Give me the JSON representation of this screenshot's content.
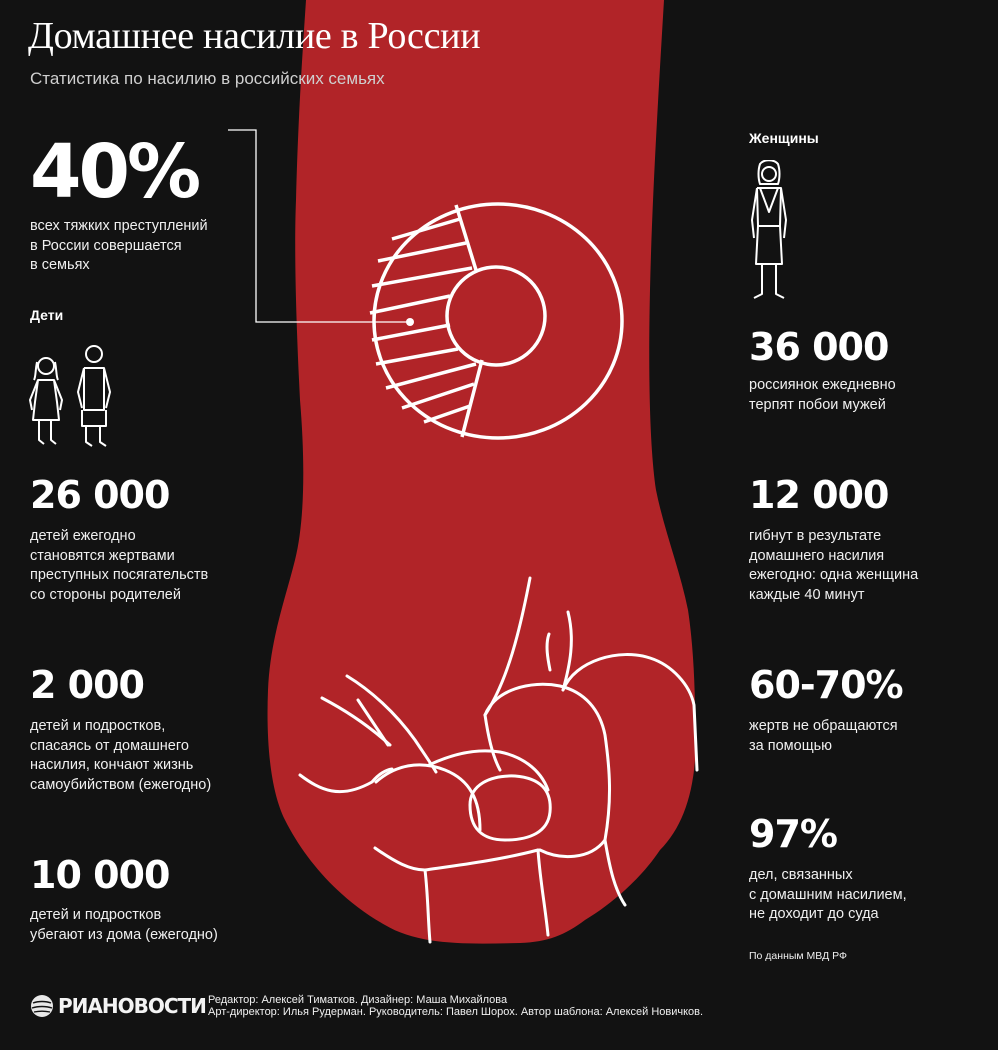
{
  "header": {
    "title": "Домашнее насилие в России",
    "subtitle": "Статистика по насилию в российских семьях"
  },
  "colors": {
    "background": "#121212",
    "arm": "#b12428",
    "line": "#ffffff"
  },
  "icons": [
    "fist-illustration",
    "pie-chart-icon",
    "girl-icon",
    "boy-icon",
    "woman-icon",
    "globe-icon"
  ],
  "highlight": {
    "value": "40%",
    "text": "всех тяжких преступлений\nв России совершается\nв семьях",
    "share_percent": 40
  },
  "children": {
    "heading": "Дети",
    "stats": [
      {
        "value": "26 000",
        "text": "детей ежегодно\nстановятся жертвами\nпреступных посягательств\nсо стороны родителей"
      },
      {
        "value": "2 000",
        "text": "детей и подростков,\nспасаясь от домашнего\nнасилия, кончают жизнь\nсамоубийством (ежегодно)"
      },
      {
        "value": "10 000",
        "text": "детей и подростков\nубегают из дома (ежегодно)"
      }
    ]
  },
  "women": {
    "heading": "Женщины",
    "stats": [
      {
        "value": "36 000",
        "text": "россиянок ежедневно\nтерпят побои мужей"
      },
      {
        "value": "12 000",
        "text": "гибнут в результате\nдомашнего насилия\nежегодно: одна женщина\nкаждые 40 минут"
      },
      {
        "value": "60-70%",
        "text": "жертв не обращаются\nза помощью"
      },
      {
        "value": "97%",
        "text": "дел, связанных\nс домашним насилием,\nне доходит до суда"
      }
    ]
  },
  "source": "По данным МВД РФ",
  "footer": {
    "logo": "РИАНОВОСТИ",
    "credits_line1": "Редактор: Алексей Тиматков. Дизайнер: Маша Михайлова",
    "credits_line2": "Арт-директор: Илья Рудерман. Руководитель: Павел Шорох. Автор шаблона: Алексей Новичков."
  }
}
